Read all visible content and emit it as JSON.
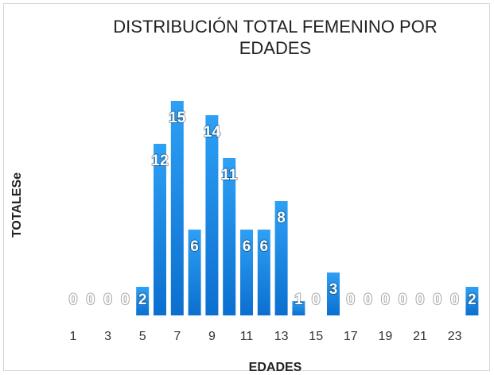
{
  "chart_data": {
    "type": "bar",
    "title": "DISTRIBUCIÓN TOTAL FEMENINO POR EDADES",
    "x_label": "EDADES",
    "y_label": "TOTALESe",
    "categories": [
      1,
      null,
      3,
      null,
      5,
      null,
      7,
      null,
      9,
      null,
      11,
      null,
      13,
      null,
      15,
      null,
      17,
      null,
      19,
      null,
      21,
      null,
      23,
      null
    ],
    "values": [
      0,
      0,
      0,
      0,
      2,
      12,
      15,
      6,
      14,
      11,
      6,
      6,
      8,
      1,
      0,
      3,
      0,
      0,
      0,
      0,
      0,
      0,
      0,
      2
    ],
    "color": "#1a8fe8",
    "ylim": [
      0,
      16
    ]
  }
}
